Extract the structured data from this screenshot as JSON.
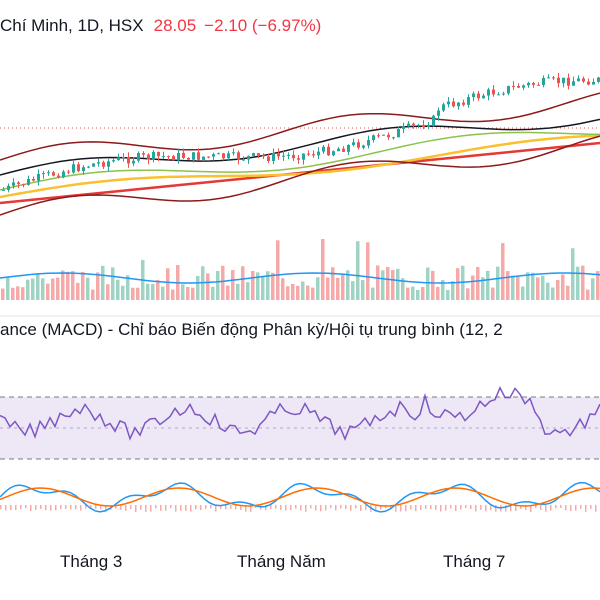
{
  "header": {
    "symbol": "Chí Minh, 1D, HSX",
    "price": "28.05",
    "change": "−2.10 (−6.97%)"
  },
  "macd_title": "ance (MACD) - Chỉ báo Biến động Phân kỳ/Hội tụ trung bình (12, 2",
  "xaxis": [
    "Tháng 3",
    "Tháng Năm",
    "Tháng 7"
  ],
  "colors": {
    "up": "#26a69a",
    "down": "#ef5350",
    "rsi_line": "#7e57c2",
    "rsi_band": "#ede7f6",
    "macd_line": "#2196f3",
    "signal_line": "#ff6d00",
    "volume_ma": "#2196f3",
    "ma_red": "#e53935",
    "ma_yellow": "#fbc02d",
    "ma_green": "#8bc34a",
    "ma_black": "#131722",
    "bb_dark": "#8b1a1a"
  }
}
